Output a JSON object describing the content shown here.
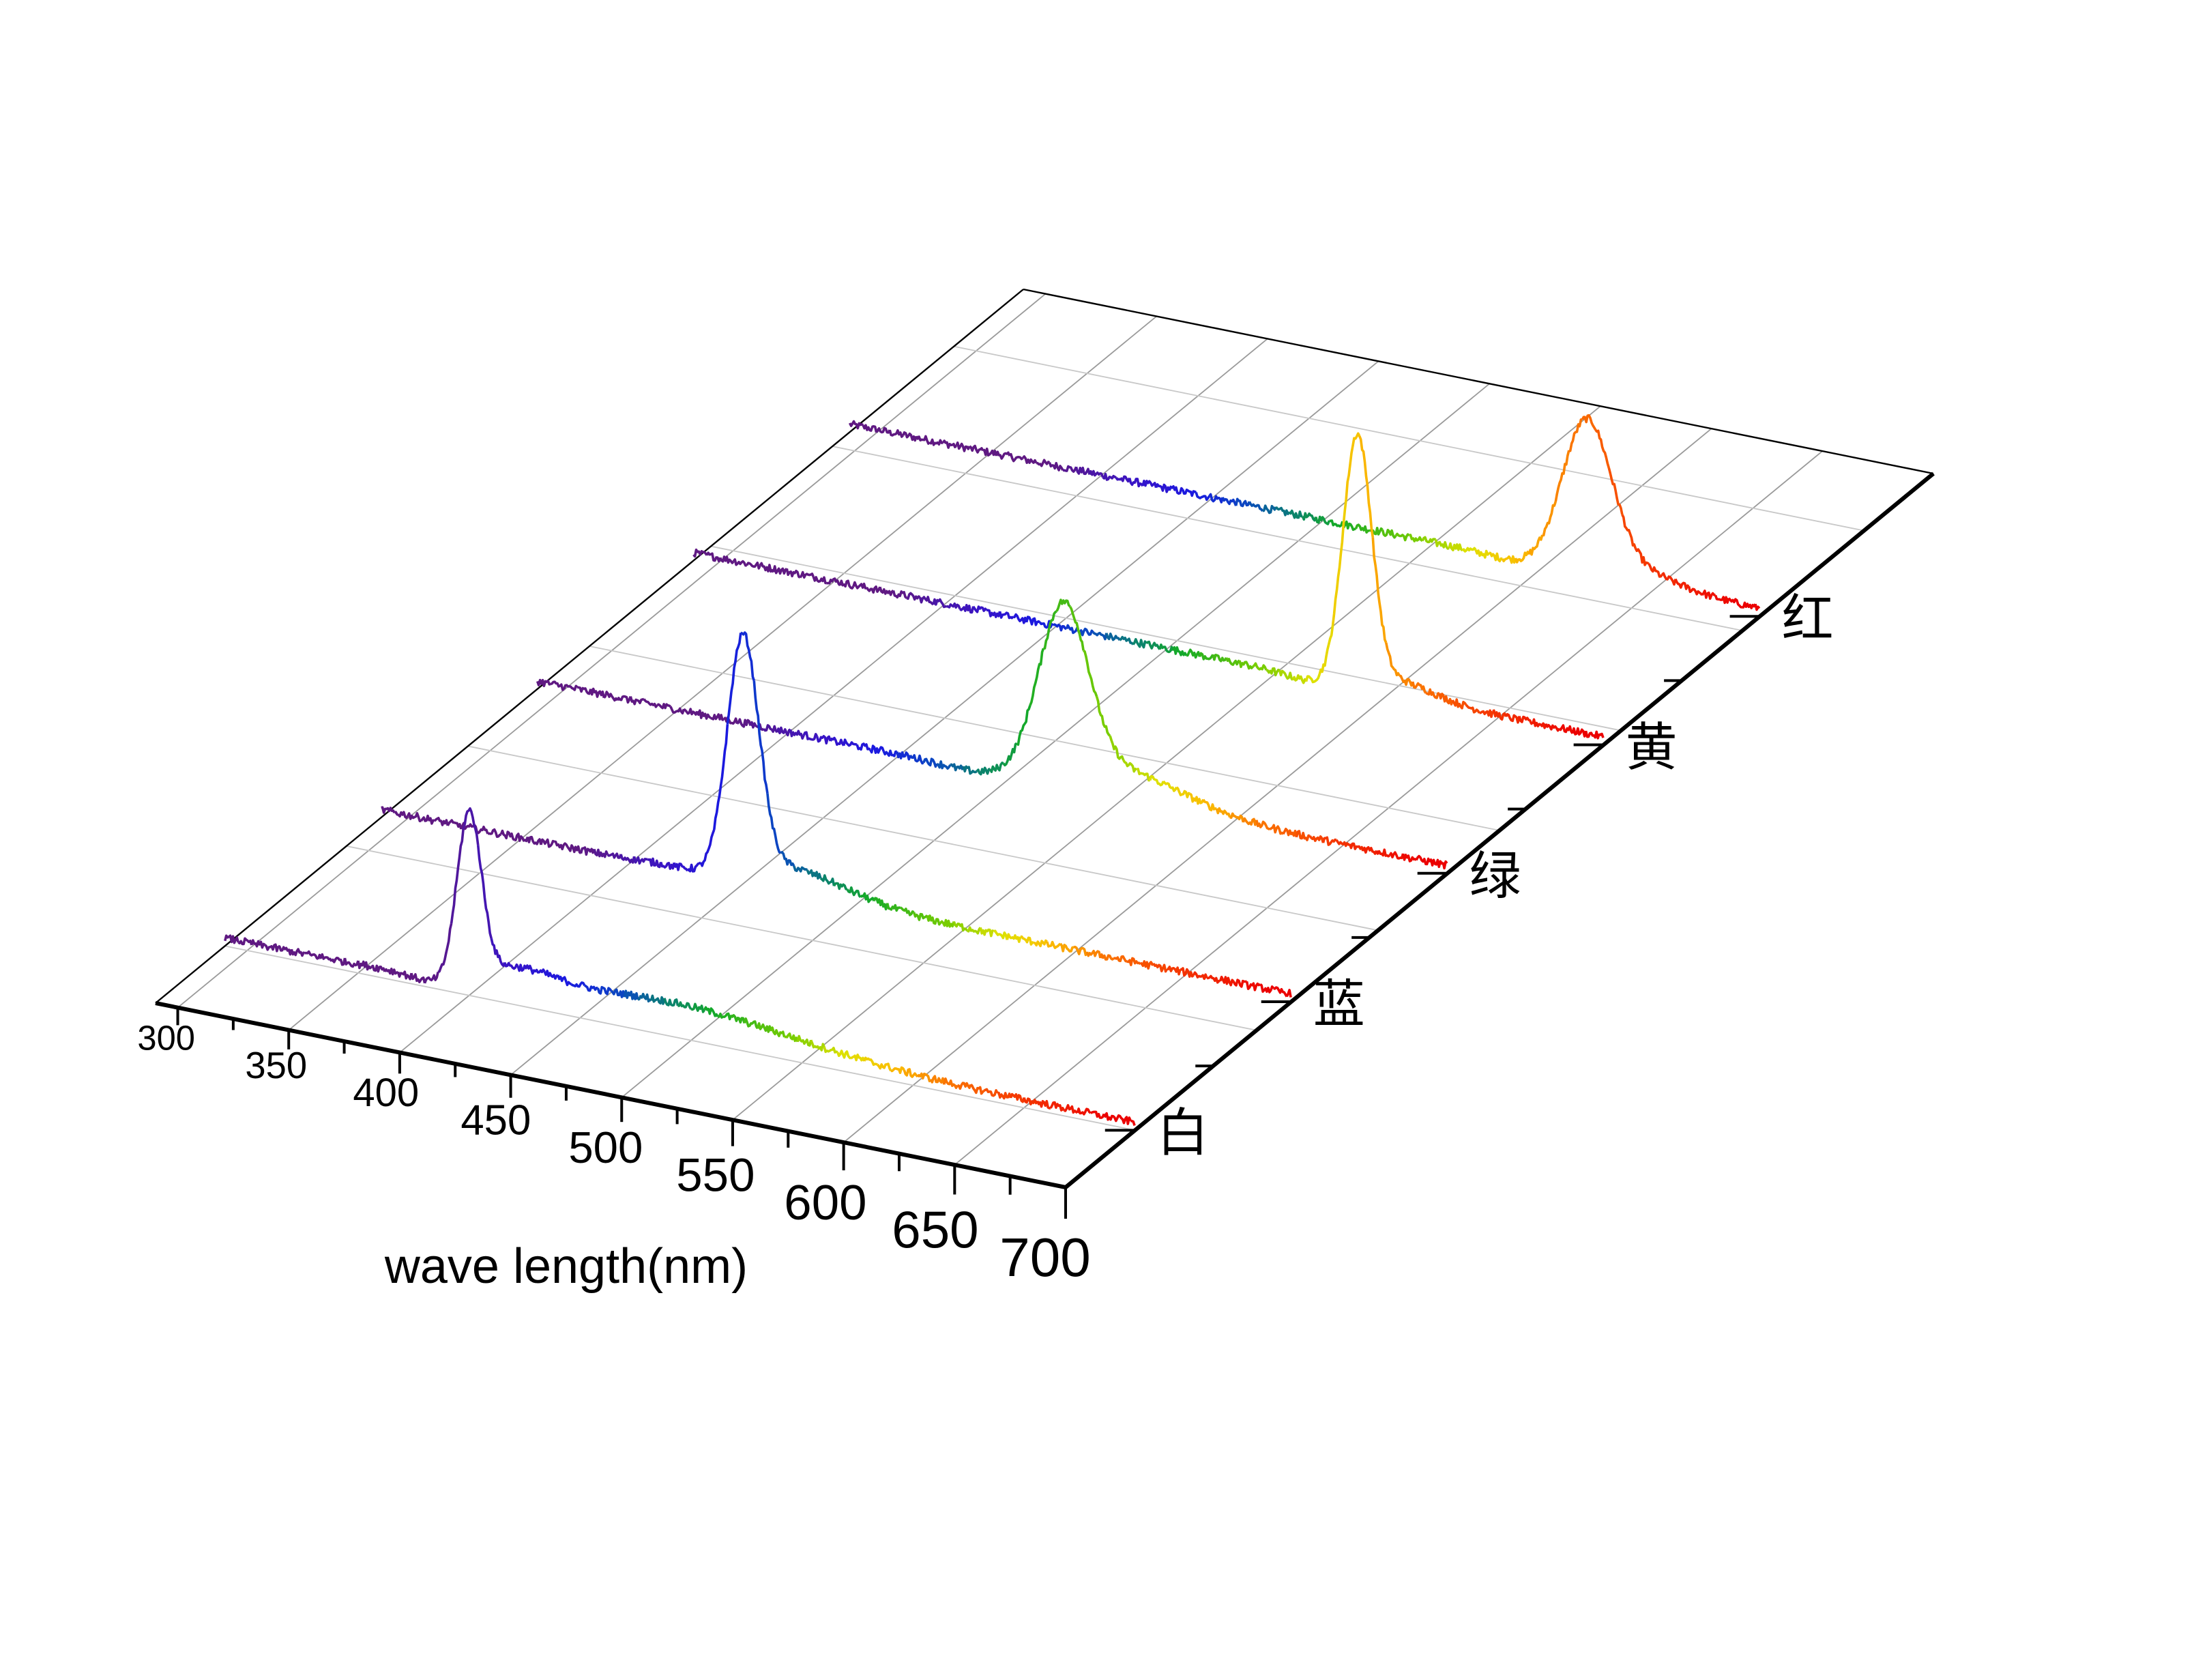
{
  "chart_data": {
    "type": "line",
    "title": "",
    "xlabel": "wave length(nm)",
    "ylabel": "",
    "zlabel": "",
    "x_ticks": [
      300,
      350,
      400,
      450,
      500,
      550,
      600,
      650,
      700
    ],
    "xlim": [
      290,
      700
    ],
    "grid": true,
    "series": [
      {
        "name": "白",
        "x_range": [
          290,
          700
        ],
        "baseline": 0.03,
        "peaks": [
          {
            "center": 400,
            "width": 5.5,
            "height": 0.62
          },
          {
            "center": 420,
            "width": 18,
            "height": 0.07
          },
          {
            "center": 490,
            "width": 55,
            "height": 0.1
          }
        ],
        "dip": {
          "center": 385,
          "width": 10,
          "depth": 0.03
        }
      },
      {
        "name": "蓝",
        "x_range": [
          290,
          700
        ],
        "baseline": 0.03,
        "peaks": [
          {
            "center": 453,
            "width": 7,
            "height": 0.88
          },
          {
            "center": 470,
            "width": 28,
            "height": 0.1
          }
        ],
        "dip": {
          "center": 438,
          "width": 12,
          "depth": 0.03
        }
      },
      {
        "name": "绿",
        "x_range": [
          290,
          700
        ],
        "baseline": 0.03,
        "peaks": [
          {
            "center": 527,
            "width": 11,
            "height": 0.62
          },
          {
            "center": 550,
            "width": 30,
            "height": 0.12
          }
        ],
        "dip": {
          "center": 490,
          "width": 15,
          "depth": 0.02
        }
      },
      {
        "name": "黄",
        "x_range": [
          290,
          700
        ],
        "baseline": 0.03,
        "peaks": [
          {
            "center": 589,
            "width": 6.5,
            "height": 0.93
          },
          {
            "center": 605,
            "width": 18,
            "height": 0.06
          }
        ],
        "dip": {
          "center": 570,
          "width": 12,
          "depth": 0.02
        }
      },
      {
        "name": "红",
        "x_range": [
          290,
          700
        ],
        "baseline": 0.03,
        "peaks": [
          {
            "center": 622,
            "width": 11,
            "height": 0.55
          },
          {
            "center": 640,
            "width": 20,
            "height": 0.06
          }
        ],
        "dip": {
          "center": 590,
          "width": 12,
          "depth": 0.01
        }
      }
    ]
  }
}
